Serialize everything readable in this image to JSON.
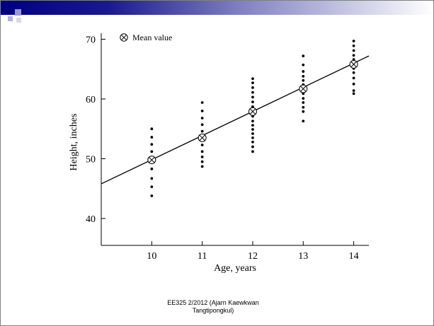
{
  "slide": {
    "footer": "EE325 2/2012 (Ajarn Kaewkwan Tangtipongkul)",
    "accent_color": "#000080"
  },
  "chart_data": {
    "type": "scatter",
    "xlabel": "Age, years",
    "ylabel": "Height, inches",
    "x_ticks": [
      10,
      11,
      12,
      13,
      14
    ],
    "y_ticks": [
      40,
      50,
      60,
      70
    ],
    "xlim": [
      9.0,
      14.3
    ],
    "ylim": [
      35.5,
      71
    ],
    "legend": {
      "label": "Mean value",
      "position": "top-left",
      "marker": "circled-x-icon"
    },
    "grid": false,
    "series": [
      {
        "kind": "points",
        "points": [
          {
            "x": 10,
            "y": 43.8
          },
          {
            "x": 10,
            "y": 45.3
          },
          {
            "x": 10,
            "y": 46.7
          },
          {
            "x": 10,
            "y": 48.3
          },
          {
            "x": 10,
            "y": 49.8
          },
          {
            "x": 10,
            "y": 51.2
          },
          {
            "x": 10,
            "y": 52.4
          },
          {
            "x": 10,
            "y": 53.6
          },
          {
            "x": 10,
            "y": 55.0
          },
          {
            "x": 11,
            "y": 48.7
          },
          {
            "x": 11,
            "y": 49.5
          },
          {
            "x": 11,
            "y": 50.3
          },
          {
            "x": 11,
            "y": 51.2
          },
          {
            "x": 11,
            "y": 52.3
          },
          {
            "x": 11,
            "y": 53.5
          },
          {
            "x": 11,
            "y": 54.6
          },
          {
            "x": 11,
            "y": 55.7
          },
          {
            "x": 11,
            "y": 56.8
          },
          {
            "x": 11,
            "y": 58.0
          },
          {
            "x": 11,
            "y": 59.4
          },
          {
            "x": 12,
            "y": 51.2
          },
          {
            "x": 12,
            "y": 52.0
          },
          {
            "x": 12,
            "y": 52.8
          },
          {
            "x": 12,
            "y": 53.5
          },
          {
            "x": 12,
            "y": 54.2
          },
          {
            "x": 12,
            "y": 54.9
          },
          {
            "x": 12,
            "y": 55.6
          },
          {
            "x": 12,
            "y": 56.3
          },
          {
            "x": 12,
            "y": 57.1
          },
          {
            "x": 12,
            "y": 57.9
          },
          {
            "x": 12,
            "y": 58.7
          },
          {
            "x": 12,
            "y": 59.5
          },
          {
            "x": 12,
            "y": 60.3
          },
          {
            "x": 12,
            "y": 61.1
          },
          {
            "x": 12,
            "y": 61.9
          },
          {
            "x": 12,
            "y": 62.7
          },
          {
            "x": 12,
            "y": 63.4
          },
          {
            "x": 13,
            "y": 56.3
          },
          {
            "x": 13,
            "y": 57.9
          },
          {
            "x": 13,
            "y": 58.6
          },
          {
            "x": 13,
            "y": 59.4
          },
          {
            "x": 13,
            "y": 60.1
          },
          {
            "x": 13,
            "y": 60.9
          },
          {
            "x": 13,
            "y": 61.7
          },
          {
            "x": 13,
            "y": 62.4
          },
          {
            "x": 13,
            "y": 63.1
          },
          {
            "x": 13,
            "y": 63.8
          },
          {
            "x": 13,
            "y": 64.6
          },
          {
            "x": 13,
            "y": 65.7
          },
          {
            "x": 13,
            "y": 67.2
          },
          {
            "x": 14,
            "y": 60.9
          },
          {
            "x": 14,
            "y": 61.4
          },
          {
            "x": 14,
            "y": 62.5
          },
          {
            "x": 14,
            "y": 63.5
          },
          {
            "x": 14,
            "y": 64.4
          },
          {
            "x": 14,
            "y": 65.1
          },
          {
            "x": 14,
            "y": 66.0
          },
          {
            "x": 14,
            "y": 66.6
          },
          {
            "x": 14,
            "y": 67.3
          },
          {
            "x": 14,
            "y": 68.1
          },
          {
            "x": 14,
            "y": 68.9
          },
          {
            "x": 14,
            "y": 69.7
          }
        ]
      },
      {
        "kind": "means",
        "points": [
          {
            "x": 10,
            "y": 49.8
          },
          {
            "x": 11,
            "y": 53.5
          },
          {
            "x": 12,
            "y": 57.9
          },
          {
            "x": 13,
            "y": 61.7
          },
          {
            "x": 14,
            "y": 65.8
          }
        ]
      },
      {
        "kind": "regression-line",
        "points": [
          {
            "x": 9.0,
            "y": 45.8
          },
          {
            "x": 14.3,
            "y": 67.2
          }
        ]
      }
    ]
  }
}
